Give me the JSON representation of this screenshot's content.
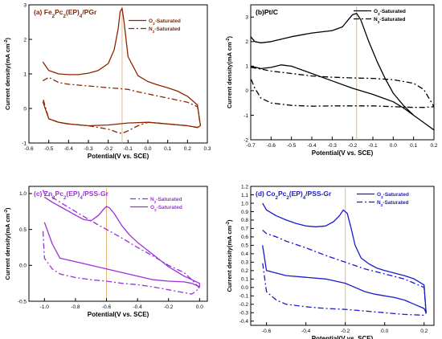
{
  "colors": {
    "panel_a": "#8b2500",
    "panel_b": "#000000",
    "panel_c": "#9b30d9",
    "panel_d": "#1a1acc",
    "marker_line": "#e6b77a"
  },
  "chart_data": [
    {
      "id": "a",
      "type": "line",
      "label_parts": [
        {
          "t": "(a) Fe"
        },
        {
          "t": "2",
          "sub": true
        },
        {
          "t": "Pc"
        },
        {
          "t": "2",
          "sub": true
        },
        {
          "t": "(EP)"
        },
        {
          "t": "4",
          "sub": true
        },
        {
          "t": "/PGr"
        }
      ],
      "xlabel": "Potential(V vs. SCE)",
      "ylabel_parts": [
        {
          "t": "Current density(mA cm"
        },
        {
          "t": "-2",
          "sup": true
        },
        {
          "t": ")"
        }
      ],
      "xlim": [
        -0.6,
        0.3
      ],
      "ylim": [
        -1,
        3
      ],
      "xticks": [
        -0.6,
        -0.5,
        -0.4,
        -0.3,
        -0.2,
        -0.1,
        0.0,
        0.1,
        0.2,
        0.3
      ],
      "xtick_labels": [
        "-0.6",
        "-0.5",
        "-0.4",
        "-0.3",
        "-0.2",
        "-0.1",
        "0.0",
        "0.1",
        "0.2",
        "0.3"
      ],
      "yticks": [
        -1,
        0,
        1,
        2,
        3
      ],
      "ytick_labels": [
        "-1",
        "0",
        "1",
        "2",
        "3"
      ],
      "marker_x": -0.13,
      "legend_position": "top-right",
      "series": [
        {
          "name_parts": [
            {
              "t": "O"
            },
            {
              "t": "2",
              "sub": true
            },
            {
              "t": "-Saturated"
            }
          ],
          "style": "solid",
          "x": [
            -0.53,
            -0.5,
            -0.45,
            -0.4,
            -0.35,
            -0.3,
            -0.25,
            -0.2,
            -0.17,
            -0.15,
            -0.14,
            -0.13,
            -0.12,
            -0.1,
            -0.05,
            0.0,
            0.05,
            0.1,
            0.15,
            0.2,
            0.25,
            0.265,
            0.25,
            0.2,
            0.1,
            0.0,
            -0.1,
            -0.2,
            -0.3,
            -0.4,
            -0.45,
            -0.5,
            -0.53
          ],
          "y": [
            1.35,
            1.1,
            1.0,
            0.98,
            0.98,
            1.02,
            1.1,
            1.3,
            1.7,
            2.3,
            2.8,
            2.9,
            2.5,
            1.5,
            0.95,
            0.78,
            0.68,
            0.6,
            0.5,
            0.35,
            0.1,
            -0.5,
            -0.55,
            -0.5,
            -0.45,
            -0.4,
            -0.42,
            -0.48,
            -0.5,
            -0.45,
            -0.4,
            -0.3,
            0.2
          ]
        },
        {
          "name_parts": [
            {
              "t": "N"
            },
            {
              "t": "2",
              "sub": true
            },
            {
              "t": "-Saturated"
            }
          ],
          "style": "dashdot",
          "x": [
            -0.53,
            -0.5,
            -0.45,
            -0.4,
            -0.3,
            -0.2,
            -0.15,
            -0.1,
            -0.05,
            0.0,
            0.1,
            0.2,
            0.25,
            0.265,
            0.25,
            0.2,
            0.1,
            0.0,
            -0.05,
            -0.1,
            -0.13,
            -0.15,
            -0.2,
            -0.3,
            -0.4,
            -0.45,
            -0.5,
            -0.53
          ],
          "y": [
            0.8,
            0.9,
            0.75,
            0.7,
            0.65,
            0.6,
            0.58,
            0.55,
            0.48,
            0.42,
            0.3,
            0.18,
            0.05,
            -0.5,
            -0.55,
            -0.5,
            -0.45,
            -0.4,
            -0.5,
            -0.65,
            -0.72,
            -0.7,
            -0.6,
            -0.5,
            -0.45,
            -0.4,
            -0.3,
            0.3
          ]
        }
      ]
    },
    {
      "id": "b",
      "type": "line",
      "label_parts": [
        {
          "t": "(b)Pt/C"
        }
      ],
      "xlabel": "Potential(V vs. SCE)",
      "ylabel_parts": [
        {
          "t": "Current density(mA cm"
        },
        {
          "t": "-2",
          "sup": true
        },
        {
          "t": ")"
        }
      ],
      "xlim": [
        -0.7,
        0.2
      ],
      "ylim": [
        -2,
        3.5
      ],
      "xticks": [
        -0.7,
        -0.6,
        -0.5,
        -0.4,
        -0.3,
        -0.2,
        -0.1,
        0.0,
        0.1,
        0.2
      ],
      "xtick_labels": [
        "-0.7",
        "-0.6",
        "-0.5",
        "-0.4",
        "-0.3",
        "-0.2",
        "-0.1",
        "0.0",
        "0.1",
        "0.2"
      ],
      "yticks": [
        -2,
        -1,
        0,
        1,
        2,
        3
      ],
      "ytick_labels": [
        "-2",
        "-1",
        "0",
        "1",
        "2",
        "3"
      ],
      "marker_x": -0.18,
      "legend_position": "top-right",
      "series": [
        {
          "name_parts": [
            {
              "t": "O"
            },
            {
              "t": "2",
              "sub": true
            },
            {
              "t": "-Saturated"
            }
          ],
          "style": "solid",
          "x": [
            -0.7,
            -0.68,
            -0.65,
            -0.6,
            -0.5,
            -0.4,
            -0.3,
            -0.25,
            -0.22,
            -0.2,
            -0.18,
            -0.16,
            -0.12,
            -0.08,
            -0.04,
            0.0,
            0.05,
            0.1,
            0.15,
            0.2,
            0.15,
            0.1,
            0.05,
            0.0,
            -0.05,
            -0.1,
            -0.2,
            -0.3,
            -0.4,
            -0.5,
            -0.55,
            -0.6,
            -0.65,
            -0.7
          ],
          "y": [
            2.2,
            2.0,
            1.95,
            2.0,
            2.2,
            2.35,
            2.45,
            2.6,
            2.9,
            3.1,
            3.15,
            2.9,
            2.0,
            1.2,
            0.5,
            -0.1,
            -0.6,
            -1.0,
            -1.3,
            -1.6,
            -1.3,
            -1.0,
            -0.7,
            -0.45,
            -0.3,
            -0.15,
            0.1,
            0.4,
            0.7,
            1.0,
            1.05,
            0.95,
            0.9,
            1.0
          ]
        },
        {
          "name_parts": [
            {
              "t": "N"
            },
            {
              "t": "2",
              "sub": true
            },
            {
              "t": "-Saturated"
            }
          ],
          "style": "dashdot",
          "x": [
            -0.7,
            -0.65,
            -0.6,
            -0.5,
            -0.4,
            -0.3,
            -0.2,
            -0.1,
            0.0,
            0.1,
            0.15,
            0.2,
            0.15,
            0.1,
            0.0,
            -0.1,
            -0.2,
            -0.3,
            -0.4,
            -0.5,
            -0.6,
            -0.65,
            -0.68,
            -0.7
          ],
          "y": [
            0.95,
            0.88,
            0.8,
            0.7,
            0.6,
            0.55,
            0.52,
            0.5,
            0.45,
            0.3,
            0.05,
            -0.65,
            -0.68,
            -0.68,
            -0.65,
            -0.62,
            -0.62,
            -0.62,
            -0.63,
            -0.6,
            -0.5,
            -0.3,
            0.1,
            0.5
          ]
        }
      ]
    },
    {
      "id": "c",
      "type": "line",
      "label_parts": [
        {
          "t": "(c) Zn"
        },
        {
          "t": "2",
          "sub": true
        },
        {
          "t": "Pc"
        },
        {
          "t": "2",
          "sub": true
        },
        {
          "t": "(EP)"
        },
        {
          "t": "4",
          "sub": true
        },
        {
          "t": "/PSS-Gr"
        }
      ],
      "xlabel": "Potential(V vs. SCE)",
      "ylabel_parts": [
        {
          "t": "Current density(mA cm"
        },
        {
          "t": "-2",
          "sup": true
        },
        {
          "t": ")"
        }
      ],
      "xlim": [
        -1.1,
        0.05
      ],
      "ylim": [
        -0.5,
        1.1
      ],
      "xticks": [
        -1.0,
        -0.8,
        -0.6,
        -0.4,
        -0.2,
        0.0
      ],
      "xtick_labels": [
        "-1.0",
        "-0.8",
        "-0.6",
        "-0.4",
        "-0.2",
        "0.0"
      ],
      "yticks": [
        -0.5,
        0.0,
        0.5,
        1.0
      ],
      "ytick_labels": [
        "-0.5",
        "0.0",
        "0.5",
        "1.0"
      ],
      "marker_x": -0.6,
      "legend_position": "top-right",
      "series": [
        {
          "name_parts": [
            {
              "t": "N"
            },
            {
              "t": "2",
              "sub": true
            },
            {
              "t": "-Saturated"
            }
          ],
          "style": "dashdot",
          "x": [
            -1.01,
            -1.0,
            -0.95,
            -0.9,
            -0.8,
            -0.7,
            -0.6,
            -0.5,
            -0.4,
            -0.3,
            -0.2,
            -0.1,
            -0.05,
            0.0,
            -0.05,
            -0.1,
            -0.2,
            -0.3,
            -0.4,
            -0.5,
            -0.6,
            -0.7,
            -0.8,
            -0.9,
            -0.95,
            -1.0,
            -1.01
          ],
          "y": [
            1.05,
            1.0,
            0.95,
            0.88,
            0.75,
            0.62,
            0.5,
            0.38,
            0.25,
            0.13,
            0.0,
            -0.1,
            -0.2,
            -0.32,
            -0.4,
            -0.38,
            -0.34,
            -0.3,
            -0.27,
            -0.25,
            -0.22,
            -0.2,
            -0.17,
            -0.12,
            -0.05,
            0.1,
            0.5
          ]
        },
        {
          "name_parts": [
            {
              "t": "O"
            },
            {
              "t": "2",
              "sub": true
            },
            {
              "t": "-Saturated"
            }
          ],
          "style": "solid",
          "x": [
            -1.0,
            -0.95,
            -0.9,
            -0.85,
            -0.8,
            -0.75,
            -0.7,
            -0.65,
            -0.62,
            -0.6,
            -0.58,
            -0.55,
            -0.5,
            -0.45,
            -0.4,
            -0.3,
            -0.2,
            -0.1,
            -0.05,
            0.0,
            0.0,
            -0.05,
            -0.1,
            -0.2,
            -0.3,
            -0.4,
            -0.5,
            -0.6,
            -0.7,
            -0.8,
            -0.9,
            -0.95,
            -1.0
          ],
          "y": [
            0.95,
            0.88,
            0.82,
            0.76,
            0.7,
            0.64,
            0.62,
            0.7,
            0.78,
            0.82,
            0.8,
            0.72,
            0.55,
            0.42,
            0.32,
            0.15,
            -0.02,
            -0.15,
            -0.2,
            -0.25,
            -0.3,
            -0.25,
            -0.23,
            -0.22,
            -0.2,
            -0.15,
            -0.1,
            -0.05,
            0.0,
            0.05,
            0.1,
            0.3,
            0.6
          ]
        }
      ]
    },
    {
      "id": "d",
      "type": "line",
      "label_parts": [
        {
          "t": "(d) Co"
        },
        {
          "t": "2",
          "sub": true
        },
        {
          "t": "Pc"
        },
        {
          "t": "2",
          "sub": true
        },
        {
          "t": "(EP)"
        },
        {
          "t": "4",
          "sub": true
        },
        {
          "t": "/PSS-Gr"
        }
      ],
      "xlabel": "Potential(V vs. SCE)",
      "ylabel_parts": [
        {
          "t": "Current density(mA cm"
        },
        {
          "t": "-2",
          "sup": true
        },
        {
          "t": ")"
        }
      ],
      "xlim": [
        -0.68,
        0.25
      ],
      "ylim": [
        -0.45,
        1.2
      ],
      "xticks": [
        -0.6,
        -0.4,
        -0.2,
        0.0,
        0.2
      ],
      "xtick_labels": [
        "-0.6",
        "-0.4",
        "-0.2",
        "0.0",
        "0.2"
      ],
      "yticks": [
        -0.4,
        -0.3,
        -0.2,
        -0.1,
        0.0,
        0.1,
        0.2,
        0.3,
        0.4,
        0.5,
        0.6,
        0.7,
        0.8,
        0.9,
        1.0,
        1.1,
        1.2
      ],
      "ytick_labels": [
        "-0.4",
        "-0.3",
        "-0.2",
        "-0.1",
        "0.0",
        "0.1",
        "0.2",
        "0.3",
        "0.4",
        "0.5",
        "0.6",
        "0.7",
        "0.8",
        "0.9",
        "1.0",
        "1.1",
        "1.2"
      ],
      "marker_x": -0.2,
      "legend_position": "top-right",
      "series": [
        {
          "name_parts": [
            {
              "t": "O"
            },
            {
              "t": "2",
              "sub": true
            },
            {
              "t": "-Saturated"
            }
          ],
          "style": "solid",
          "x": [
            -0.62,
            -0.6,
            -0.55,
            -0.5,
            -0.45,
            -0.4,
            -0.35,
            -0.3,
            -0.26,
            -0.23,
            -0.21,
            -0.19,
            -0.17,
            -0.15,
            -0.12,
            -0.08,
            -0.04,
            0.0,
            0.05,
            0.1,
            0.15,
            0.2,
            0.21,
            0.2,
            0.15,
            0.1,
            0.05,
            0.0,
            -0.05,
            -0.1,
            -0.15,
            -0.2,
            -0.3,
            -0.4,
            -0.5,
            -0.6,
            -0.62
          ],
          "y": [
            1.0,
            0.92,
            0.85,
            0.8,
            0.76,
            0.73,
            0.72,
            0.73,
            0.78,
            0.85,
            0.92,
            0.88,
            0.7,
            0.5,
            0.35,
            0.28,
            0.23,
            0.2,
            0.17,
            0.14,
            0.1,
            0.03,
            -0.3,
            -0.25,
            -0.2,
            -0.15,
            -0.12,
            -0.1,
            -0.08,
            -0.05,
            0.0,
            0.05,
            0.1,
            0.12,
            0.14,
            0.2,
            0.5
          ]
        },
        {
          "name_parts": [
            {
              "t": "N"
            },
            {
              "t": "2",
              "sub": true
            },
            {
              "t": "-Saturated"
            }
          ],
          "style": "dashdot",
          "x": [
            -0.62,
            -0.6,
            -0.55,
            -0.5,
            -0.4,
            -0.3,
            -0.2,
            -0.1,
            0.0,
            0.1,
            0.15,
            0.2,
            0.21,
            0.2,
            0.1,
            0.0,
            -0.1,
            -0.2,
            -0.3,
            -0.4,
            -0.5,
            -0.55,
            -0.6,
            -0.62
          ],
          "y": [
            0.68,
            0.64,
            0.6,
            0.55,
            0.47,
            0.38,
            0.3,
            0.22,
            0.16,
            0.1,
            0.05,
            0.0,
            -0.3,
            -0.33,
            -0.32,
            -0.3,
            -0.28,
            -0.26,
            -0.25,
            -0.23,
            -0.2,
            -0.15,
            -0.05,
            0.3
          ]
        }
      ]
    }
  ]
}
